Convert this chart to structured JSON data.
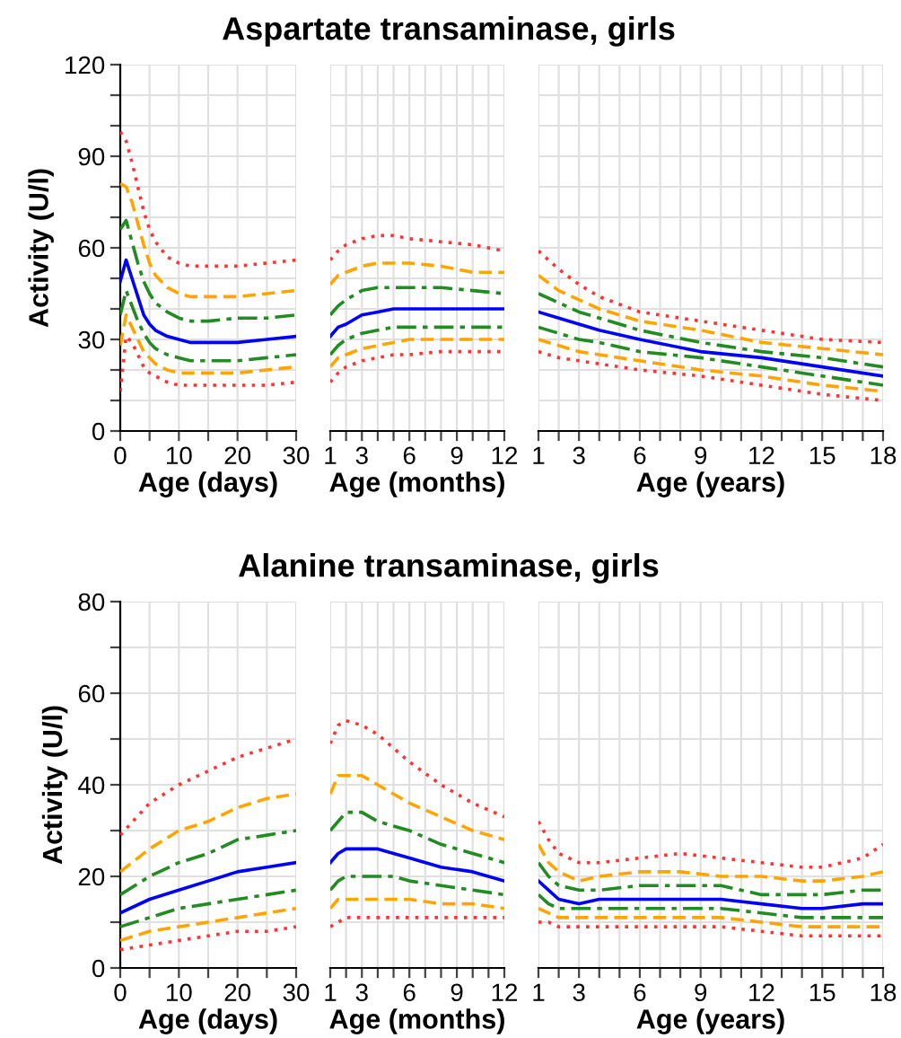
{
  "chart_data": [
    {
      "type": "line",
      "xlabel": "Age (days)",
      "ylabel": "Activity (U/l)",
      "x": [
        0,
        1,
        2,
        3,
        4,
        5,
        6,
        8,
        10,
        12,
        15,
        20,
        25,
        30
      ],
      "xlim": [
        0,
        30
      ],
      "xticks": [
        0,
        {
          "value": 5,
          "label": null
        },
        10,
        {
          "value": 15,
          "label": null
        },
        20,
        {
          "value": 25,
          "label": null
        },
        30
      ],
      "ylim": [
        0,
        120
      ],
      "yticks": [
        0,
        {
          "value": 10,
          "label": null
        },
        {
          "value": 20,
          "label": null
        },
        30,
        {
          "value": 40,
          "label": null
        },
        {
          "value": 50,
          "label": null
        },
        60,
        {
          "value": 70,
          "label": null
        },
        {
          "value": 80,
          "label": null
        },
        90,
        {
          "value": 100,
          "label": null
        },
        {
          "value": 110,
          "label": null
        },
        120
      ],
      "grid": true,
      "series": [
        {
          "color": "#ff3333",
          "line_style": "dotted",
          "values": [
            98,
            95,
            88,
            80,
            72,
            66,
            62,
            57,
            55,
            54,
            54,
            54,
            55,
            56
          ]
        },
        {
          "color": "#ffa500",
          "line_style": "dashed",
          "values": [
            81,
            80,
            75,
            68,
            61,
            55,
            51,
            47,
            45,
            44,
            44,
            44,
            45,
            46
          ]
        },
        {
          "color": "#228b22",
          "line_style": "dashdot",
          "values": [
            66,
            69,
            62,
            55,
            49,
            45,
            42,
            39,
            37,
            36,
            36,
            37,
            37,
            38
          ]
        },
        {
          "color": "#0000ff",
          "line_style": "solid",
          "values": [
            49,
            56,
            50,
            44,
            38,
            35,
            33,
            31,
            30,
            29,
            29,
            29,
            30,
            31
          ]
        },
        {
          "color": "#228b22",
          "line_style": "dashdot",
          "values": [
            38,
            46,
            41,
            36,
            32,
            29,
            27,
            25,
            24,
            23,
            23,
            23,
            24,
            25
          ]
        },
        {
          "color": "#ffa500",
          "line_style": "dashed",
          "values": [
            28,
            38,
            34,
            30,
            26,
            24,
            22,
            20,
            19,
            19,
            19,
            19,
            20,
            21
          ]
        },
        {
          "color": "#ff3333",
          "line_style": "dotted",
          "values": [
            13,
            31,
            29,
            25,
            21,
            19,
            18,
            16,
            15,
            15,
            15,
            15,
            15,
            16
          ]
        }
      ]
    },
    {
      "type": "line",
      "title": "Aspartate transaminase, girls",
      "xlabel": "Age (months)",
      "x": [
        1,
        1.5,
        2,
        3,
        4,
        5,
        6,
        8,
        10,
        12
      ],
      "xlim": [
        1,
        12
      ],
      "xticks": [
        1,
        {
          "value": 2,
          "label": null
        },
        3,
        {
          "value": 4,
          "label": null
        },
        {
          "value": 5,
          "label": null
        },
        6,
        {
          "value": 7,
          "label": null
        },
        {
          "value": 8,
          "label": null
        },
        9,
        {
          "value": 10,
          "label": null
        },
        {
          "value": 11,
          "label": null
        },
        12
      ],
      "ylim": [
        0,
        120
      ],
      "yticks": [
        0,
        10,
        20,
        30,
        40,
        50,
        60,
        70,
        80,
        90,
        100,
        110,
        120
      ],
      "tick_labels": "x",
      "grid": true,
      "series": [
        {
          "color": "#ff3333",
          "line_style": "dotted",
          "values": [
            56,
            59,
            61,
            63,
            64,
            64,
            63,
            62,
            61,
            59
          ]
        },
        {
          "color": "#ffa500",
          "line_style": "dashed",
          "values": [
            48,
            51,
            52,
            54,
            55,
            55,
            55,
            54,
            52,
            52
          ]
        },
        {
          "color": "#228b22",
          "line_style": "dashdot",
          "values": [
            38,
            41,
            43,
            46,
            47,
            47,
            47,
            47,
            46,
            45
          ]
        },
        {
          "color": "#0000ff",
          "line_style": "solid",
          "values": [
            31,
            34,
            35,
            38,
            39,
            40,
            40,
            40,
            40,
            40
          ]
        },
        {
          "color": "#228b22",
          "line_style": "dashdot",
          "values": [
            25,
            28,
            30,
            32,
            33,
            34,
            34,
            34,
            34,
            34
          ]
        },
        {
          "color": "#ffa500",
          "line_style": "dashed",
          "values": [
            21,
            24,
            25,
            27,
            28,
            29,
            30,
            30,
            30,
            30
          ]
        },
        {
          "color": "#ff3333",
          "line_style": "dotted",
          "values": [
            16,
            19,
            21,
            23,
            24,
            25,
            25,
            26,
            26,
            26
          ]
        }
      ]
    },
    {
      "type": "line",
      "xlabel": "Age (years)",
      "x": [
        1,
        2,
        3,
        4,
        6,
        9,
        12,
        15,
        18
      ],
      "xlim": [
        1,
        18
      ],
      "xticks": [
        1,
        {
          "value": 2,
          "label": null
        },
        3,
        {
          "value": 4,
          "label": null
        },
        {
          "value": 5,
          "label": null
        },
        6,
        {
          "value": 7,
          "label": null
        },
        {
          "value": 8,
          "label": null
        },
        9,
        {
          "value": 10,
          "label": null
        },
        {
          "value": 11,
          "label": null
        },
        12,
        {
          "value": 13,
          "label": null
        },
        {
          "value": 14,
          "label": null
        },
        15,
        {
          "value": 16,
          "label": null
        },
        {
          "value": 17,
          "label": null
        },
        18
      ],
      "ylim": [
        0,
        120
      ],
      "yticks": [
        0,
        10,
        20,
        30,
        40,
        50,
        60,
        70,
        80,
        90,
        100,
        110,
        120
      ],
      "tick_labels": "x",
      "grid": true,
      "series": [
        {
          "color": "#ff3333",
          "line_style": "dotted",
          "values": [
            59,
            53,
            48,
            44,
            39,
            36,
            33,
            30,
            29
          ]
        },
        {
          "color": "#ffa500",
          "line_style": "dashed",
          "values": [
            51,
            46,
            43,
            40,
            36,
            33,
            29,
            27,
            25
          ]
        },
        {
          "color": "#228b22",
          "line_style": "dashdot",
          "values": [
            45,
            42,
            39,
            37,
            33,
            29,
            26,
            24,
            21
          ]
        },
        {
          "color": "#0000ff",
          "line_style": "solid",
          "values": [
            39,
            37,
            35,
            33,
            30,
            26,
            24,
            21,
            18
          ]
        },
        {
          "color": "#228b22",
          "line_style": "dashdot",
          "values": [
            34,
            32,
            30,
            29,
            26,
            24,
            21,
            18,
            15
          ]
        },
        {
          "color": "#ffa500",
          "line_style": "dashed",
          "values": [
            30,
            28,
            26,
            25,
            23,
            20,
            18,
            15,
            13
          ]
        },
        {
          "color": "#ff3333",
          "line_style": "dotted",
          "values": [
            26,
            24,
            23,
            22,
            20,
            18,
            15,
            12,
            10
          ]
        }
      ]
    },
    {
      "type": "line",
      "xlabel": "Age (days)",
      "ylabel": "Activity (U/l)",
      "x": [
        0,
        5,
        10,
        15,
        20,
        25,
        30
      ],
      "xlim": [
        0,
        30
      ],
      "xticks": [
        0,
        {
          "value": 5,
          "label": null
        },
        10,
        {
          "value": 15,
          "label": null
        },
        20,
        {
          "value": 25,
          "label": null
        },
        30
      ],
      "ylim": [
        0,
        80
      ],
      "yticks": [
        0,
        {
          "value": 10,
          "label": null
        },
        20,
        {
          "value": 30,
          "label": null
        },
        40,
        {
          "value": 50,
          "label": null
        },
        60,
        {
          "value": 70,
          "label": null
        },
        80
      ],
      "grid": true,
      "series": [
        {
          "color": "#ff3333",
          "line_style": "dotted",
          "values": [
            29,
            36,
            40,
            43,
            46,
            48,
            50
          ]
        },
        {
          "color": "#ffa500",
          "line_style": "dashed",
          "values": [
            21,
            26,
            30,
            32,
            35,
            37,
            38
          ]
        },
        {
          "color": "#228b22",
          "line_style": "dashdot",
          "values": [
            16,
            20,
            23,
            25,
            28,
            29,
            30
          ]
        },
        {
          "color": "#0000ff",
          "line_style": "solid",
          "values": [
            12,
            15,
            17,
            19,
            21,
            22,
            23
          ]
        },
        {
          "color": "#228b22",
          "line_style": "dashdot",
          "values": [
            9,
            11,
            13,
            14,
            15,
            16,
            17
          ]
        },
        {
          "color": "#ffa500",
          "line_style": "dashed",
          "values": [
            6,
            8,
            9,
            10,
            11,
            12,
            13
          ]
        },
        {
          "color": "#ff3333",
          "line_style": "dotted",
          "values": [
            4,
            5,
            6,
            7,
            8,
            8,
            9
          ]
        }
      ]
    },
    {
      "type": "line",
      "title": "Alanine transaminase, girls",
      "xlabel": "Age (months)",
      "x": [
        1,
        1.5,
        2,
        3,
        4,
        5,
        6,
        8,
        10,
        12
      ],
      "xlim": [
        1,
        12
      ],
      "xticks": [
        1,
        {
          "value": 2,
          "label": null
        },
        3,
        {
          "value": 4,
          "label": null
        },
        {
          "value": 5,
          "label": null
        },
        6,
        {
          "value": 7,
          "label": null
        },
        {
          "value": 8,
          "label": null
        },
        9,
        {
          "value": 10,
          "label": null
        },
        {
          "value": 11,
          "label": null
        },
        12
      ],
      "ylim": [
        0,
        80
      ],
      "yticks": [
        0,
        10,
        20,
        30,
        40,
        50,
        60,
        70,
        80
      ],
      "tick_labels": "x",
      "grid": true,
      "series": [
        {
          "color": "#ff3333",
          "line_style": "dotted",
          "values": [
            49,
            53,
            54,
            53,
            51,
            48,
            45,
            40,
            36,
            33
          ]
        },
        {
          "color": "#ffa500",
          "line_style": "dashed",
          "values": [
            38,
            42,
            42,
            42,
            40,
            38,
            36,
            33,
            30,
            28
          ]
        },
        {
          "color": "#228b22",
          "line_style": "dashdot",
          "values": [
            30,
            32,
            34,
            34,
            32,
            31,
            30,
            27,
            25,
            23
          ]
        },
        {
          "color": "#0000ff",
          "line_style": "solid",
          "values": [
            23,
            25,
            26,
            26,
            26,
            25,
            24,
            22,
            21,
            19
          ]
        },
        {
          "color": "#228b22",
          "line_style": "dashdot",
          "values": [
            17,
            19,
            20,
            20,
            20,
            20,
            19,
            18,
            17,
            16
          ]
        },
        {
          "color": "#ffa500",
          "line_style": "dashed",
          "values": [
            13,
            15,
            15,
            15,
            15,
            15,
            15,
            14,
            14,
            13
          ]
        },
        {
          "color": "#ff3333",
          "line_style": "dotted",
          "values": [
            9,
            10,
            11,
            11,
            11,
            11,
            11,
            11,
            11,
            11
          ]
        }
      ]
    },
    {
      "type": "line",
      "xlabel": "Age (years)",
      "x": [
        1,
        1.5,
        2,
        3,
        4,
        6,
        8,
        10,
        12,
        14,
        15,
        17,
        18
      ],
      "xlim": [
        1,
        18
      ],
      "xticks": [
        1,
        {
          "value": 2,
          "label": null
        },
        3,
        {
          "value": 4,
          "label": null
        },
        {
          "value": 5,
          "label": null
        },
        6,
        {
          "value": 7,
          "label": null
        },
        {
          "value": 8,
          "label": null
        },
        9,
        {
          "value": 10,
          "label": null
        },
        {
          "value": 11,
          "label": null
        },
        12,
        {
          "value": 13,
          "label": null
        },
        {
          "value": 14,
          "label": null
        },
        15,
        {
          "value": 16,
          "label": null
        },
        {
          "value": 17,
          "label": null
        },
        18
      ],
      "ylim": [
        0,
        80
      ],
      "yticks": [
        0,
        10,
        20,
        30,
        40,
        50,
        60,
        70,
        80
      ],
      "tick_labels": "x",
      "grid": true,
      "series": [
        {
          "color": "#ff3333",
          "line_style": "dotted",
          "values": [
            32,
            28,
            25,
            23,
            23,
            24,
            25,
            24,
            23,
            22,
            22,
            24,
            27
          ]
        },
        {
          "color": "#ffa500",
          "line_style": "dashed",
          "values": [
            27,
            23,
            21,
            19,
            20,
            21,
            21,
            20,
            20,
            19,
            19,
            20,
            21
          ]
        },
        {
          "color": "#228b22",
          "line_style": "dashdot",
          "values": [
            23,
            20,
            18,
            17,
            17,
            18,
            18,
            18,
            16,
            16,
            16,
            17,
            17
          ]
        },
        {
          "color": "#0000ff",
          "line_style": "solid",
          "values": [
            19,
            17,
            15,
            14,
            15,
            15,
            15,
            15,
            14,
            13,
            13,
            14,
            14
          ]
        },
        {
          "color": "#228b22",
          "line_style": "dashdot",
          "values": [
            16,
            14,
            13,
            13,
            13,
            13,
            13,
            13,
            12,
            11,
            11,
            11,
            11
          ]
        },
        {
          "color": "#ffa500",
          "line_style": "dashed",
          "values": [
            13,
            12,
            11,
            11,
            11,
            11,
            11,
            11,
            10,
            9,
            9,
            9,
            9
          ]
        },
        {
          "color": "#ff3333",
          "line_style": "dotted",
          "values": [
            10,
            10,
            9,
            9,
            9,
            9,
            9,
            9,
            8,
            7,
            7,
            7,
            7
          ]
        }
      ]
    }
  ]
}
